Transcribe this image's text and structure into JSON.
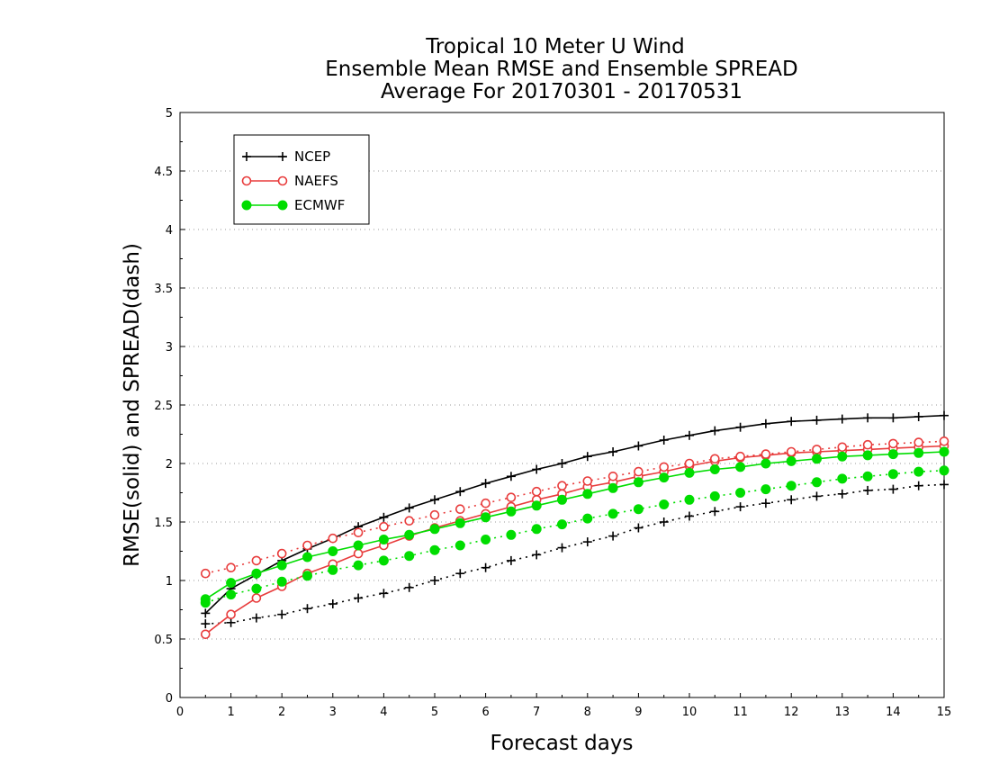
{
  "chart_data": {
    "type": "line",
    "title": [
      "Tropical 10 Meter U Wind",
      "Ensemble Mean RMSE and Ensemble SPREAD",
      "Average For 20170301 - 20170531"
    ],
    "xlabel": "Forecast days",
    "ylabel": "RMSE(solid) and SPREAD(dash)",
    "xlim": [
      0,
      15
    ],
    "ylim": [
      0,
      5
    ],
    "x_ticks": [
      0,
      1,
      2,
      3,
      4,
      5,
      6,
      7,
      8,
      9,
      10,
      11,
      12,
      13,
      14,
      15
    ],
    "y_ticks": [
      0,
      0.5,
      1,
      1.5,
      2,
      2.5,
      3,
      3.5,
      4,
      4.5,
      5
    ],
    "grid": "horizontal dotted",
    "legend_position": "top-left",
    "x": [
      0.5,
      1,
      1.5,
      2,
      2.5,
      3,
      3.5,
      4,
      4.5,
      5,
      5.5,
      6,
      6.5,
      7,
      7.5,
      8,
      8.5,
      9,
      9.5,
      10,
      10.5,
      11,
      11.5,
      12,
      12.5,
      13,
      13.5,
      14,
      14.5,
      15
    ],
    "series": [
      {
        "name": "NCEP",
        "color": "#000000",
        "marker": "plus",
        "rmse": [
          0.72,
          0.93,
          1.05,
          1.17,
          1.27,
          1.36,
          1.46,
          1.54,
          1.62,
          1.69,
          1.76,
          1.83,
          1.89,
          1.95,
          2.0,
          2.06,
          2.1,
          2.15,
          2.2,
          2.24,
          2.28,
          2.31,
          2.34,
          2.36,
          2.37,
          2.38,
          2.39,
          2.39,
          2.4,
          2.41
        ],
        "spread": [
          0.63,
          0.64,
          0.68,
          0.71,
          0.76,
          0.8,
          0.85,
          0.89,
          0.94,
          1.0,
          1.06,
          1.11,
          1.17,
          1.22,
          1.28,
          1.33,
          1.38,
          1.45,
          1.5,
          1.55,
          1.59,
          1.63,
          1.66,
          1.69,
          1.72,
          1.74,
          1.77,
          1.78,
          1.81,
          1.82
        ]
      },
      {
        "name": "NAEFS",
        "color": "#e83c3c",
        "marker": "open-circle",
        "rmse": [
          0.54,
          0.71,
          0.85,
          0.95,
          1.06,
          1.14,
          1.23,
          1.3,
          1.38,
          1.45,
          1.51,
          1.57,
          1.63,
          1.69,
          1.74,
          1.8,
          1.84,
          1.89,
          1.93,
          1.98,
          2.02,
          2.05,
          2.07,
          2.09,
          2.1,
          2.11,
          2.12,
          2.13,
          2.14,
          2.15
        ],
        "spread": [
          1.06,
          1.11,
          1.17,
          1.23,
          1.3,
          1.36,
          1.41,
          1.46,
          1.51,
          1.56,
          1.61,
          1.66,
          1.71,
          1.76,
          1.81,
          1.85,
          1.89,
          1.93,
          1.97,
          2.0,
          2.04,
          2.06,
          2.08,
          2.1,
          2.12,
          2.14,
          2.16,
          2.17,
          2.18,
          2.19
        ]
      },
      {
        "name": "ECMWF",
        "color": "#00dd00",
        "marker": "filled-circle",
        "rmse": [
          0.84,
          0.98,
          1.06,
          1.13,
          1.2,
          1.25,
          1.3,
          1.35,
          1.39,
          1.44,
          1.49,
          1.54,
          1.59,
          1.64,
          1.69,
          1.74,
          1.79,
          1.84,
          1.88,
          1.92,
          1.95,
          1.97,
          2.0,
          2.02,
          2.04,
          2.06,
          2.07,
          2.08,
          2.09,
          2.1
        ],
        "spread": [
          0.81,
          0.88,
          0.93,
          0.99,
          1.04,
          1.09,
          1.13,
          1.17,
          1.21,
          1.26,
          1.3,
          1.35,
          1.39,
          1.44,
          1.48,
          1.53,
          1.57,
          1.61,
          1.65,
          1.69,
          1.72,
          1.75,
          1.78,
          1.81,
          1.84,
          1.87,
          1.89,
          1.91,
          1.93,
          1.94
        ]
      }
    ]
  }
}
